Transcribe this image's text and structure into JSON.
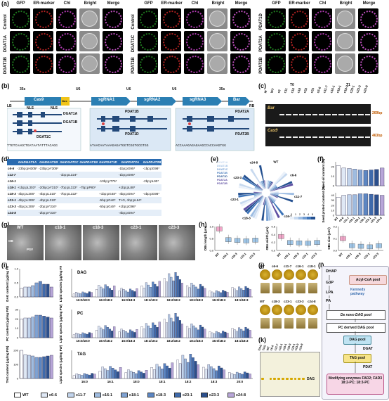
{
  "panel_letters": [
    "(a)",
    "(b)",
    "(c)",
    "(d)",
    "(e)",
    "(f)",
    "(g)",
    "(h)",
    "(i)",
    "(j)",
    "(k)",
    "(l)"
  ],
  "panel_a": {
    "channels": [
      "GFP",
      "ER-marker",
      "Chl",
      "Bright",
      "Merge"
    ],
    "group1_rows": [
      "Control",
      "DGAT1A",
      "DGAT1B"
    ],
    "group2_rows": [
      "Control",
      "DGAT1C",
      "PDAT1B"
    ],
    "group3_rows": [
      "PDAT1D",
      "PDAT2A",
      "PDAT2B"
    ]
  },
  "panel_b": {
    "top_labels": [
      "35s",
      "U6",
      "U6",
      "U6",
      "35s"
    ],
    "blocks": [
      "Cas9",
      "Nos",
      "sgRNA1",
      "sgRNA2",
      "sgRNA3",
      "Bar"
    ],
    "ends": [
      "LB",
      "RB"
    ],
    "nls": [
      "NLS",
      "NLS"
    ],
    "genes": [
      "DGAT1A",
      "DGAT1B",
      "DGAT1C",
      "PDAT1B",
      "PDAT1D",
      "PDAT2A",
      "PDAT2B"
    ],
    "sequences": [
      "TTGTCAAGCTGATAATATTTACAGG",
      "ATAACAATAAAGAGATGGTCGGTGCGTGG",
      "ACCAAAGAGAGAAGCCACCAAGTGG"
    ]
  },
  "panel_c": {
    "header_groups": [
      "T0",
      "T1"
    ],
    "lanes": [
      "M",
      "WT",
      "c6",
      "c11",
      "c16",
      "c18",
      "c23",
      "c24",
      "c6-6",
      "c11-7",
      "c16-1",
      "c18-1",
      "c18-3",
      "c23-1",
      "c23-3",
      "c24-8"
    ],
    "bands": [
      {
        "name": "Bar",
        "size": "269bp"
      },
      {
        "name": "Cas9",
        "size": "463bp"
      }
    ]
  },
  "panel_d": {
    "columns": [
      "",
      "GmDGAT1A",
      "GmDGAT1B",
      "GmDGAT1C",
      "GmPDAT1B",
      "GmPDAT1D",
      "GmPDAT2A",
      "GmPDAT2B"
    ],
    "rows": [
      [
        "c6-6",
        "-23bp;pH305*",
        "-23bp;pY309*",
        "",
        "",
        "",
        "-1bp;pG95*",
        "-1bp;pG98*"
      ],
      [
        "c11-7",
        "",
        "",
        "-1bp;pL324*",
        "",
        "",
        "-1bp;pG95*",
        ""
      ],
      [
        "c16-1",
        "",
        "",
        "",
        "",
        "-10bp;pT75*",
        "",
        "-2bp;pL90*"
      ],
      [
        "c18-1",
        "+1bp;pL303*",
        "-20bp;pY310*",
        "-7bp;pL322*",
        "-7bp;pP80*",
        "",
        "+1bp;pL88*",
        ""
      ],
      [
        "c18-3",
        "-4bp;pL306*",
        "-4bp;pL310*",
        "-7bp;pL322*",
        "",
        "+1bp;pG48*",
        "-4bp;pG94*",
        "-4bp;pG98*"
      ],
      [
        "c23-1",
        "-4bp;pL306*",
        "-4bp;pL310*",
        "",
        "",
        "-5bp;pG46*",
        "T>G,-1bp;pL64*",
        ""
      ],
      [
        "c23-3",
        "-4bp;pL306*",
        "-2bp;pY316*",
        "",
        "",
        "-5bp;pG48*",
        "+1bp;pG98*",
        ""
      ],
      [
        "c24-8",
        "",
        "-2bp;pY316*",
        "",
        "",
        "",
        "-4bp;pG94*",
        ""
      ]
    ]
  },
  "panel_e": {
    "genes": [
      "DGAT1A",
      "DGAT1B",
      "DGAT1C",
      "PDAT1B",
      "PDAT1D",
      "PDAT2A",
      "PDAT2B"
    ],
    "lines": [
      "WT",
      "c6-6",
      "c11-7",
      "c16-1",
      "c18-1",
      "c18-3",
      "c23-1",
      "c23-3",
      "c24-8"
    ],
    "scale": [
      0,
      1,
      2,
      3,
      4,
      5
    ]
  },
  "panel_f": {
    "chart_data": {
      "type": "bar",
      "categories": [
        "WT",
        "c6-6",
        "c11-7",
        "c16-1",
        "c18-1",
        "c18-3",
        "c23-1",
        "c23-3",
        "c24-8"
      ],
      "series": [
        {
          "name": "Seed oil content (%)",
          "values": [
            21,
            18.5,
            18,
            17.5,
            16.5,
            16,
            16.5,
            17,
            18.5
          ]
        },
        {
          "name": "Seed protein content (%)",
          "values": [
            36,
            40,
            41,
            41,
            43,
            43,
            42,
            41,
            40
          ]
        }
      ],
      "ylabels": [
        "Seed oil content (%)",
        "Seed protein content (%)"
      ],
      "ylim_oil": [
        0,
        25
      ],
      "ylim_protein": [
        0,
        45
      ],
      "oil_ticks": [
        "0",
        "10",
        "20"
      ],
      "protein_ticks": [
        "0",
        "10",
        "20",
        "30",
        "40"
      ]
    }
  },
  "panel_g": {
    "labels": [
      "WT",
      "c18-1",
      "c18-3",
      "c23-1",
      "c23-3"
    ],
    "annot": [
      "OB",
      "PSV"
    ]
  },
  "panel_h": {
    "chart_data": [
      {
        "type": "box",
        "ylabel": "OBs length (μm)",
        "categories": [
          "WT",
          "c18-1",
          "c18-3",
          "c23-1",
          "c23-3"
        ],
        "values": [
          0.9,
          0.45,
          0.42,
          0.4,
          0.43
        ],
        "ticks": [
          "0.0",
          "0.5",
          "1.0"
        ]
      },
      {
        "type": "box",
        "ylabel": "OBs width (μm)",
        "categories": [
          "WT",
          "c18-1",
          "c18-3",
          "c23-1",
          "c23-3"
        ],
        "values": [
          0.35,
          0.2,
          0.19,
          0.18,
          0.2
        ],
        "ticks": [
          "0.0",
          "0.2",
          "0.4",
          "0.6"
        ]
      },
      {
        "type": "box",
        "ylabel": "OBs size (μm²)",
        "categories": [
          "WT",
          "c18-1",
          "c18-3",
          "c23-1",
          "c23-3"
        ],
        "values": [
          0.1,
          0.04,
          0.035,
          0.03,
          0.04
        ],
        "ticks": [
          "0.0",
          "0.1",
          "0.2"
        ]
      }
    ]
  },
  "panel_i": {
    "legend": [
      "WT",
      "c6-6",
      "c11-7",
      "c16-1",
      "c18-1",
      "c18-3",
      "c23-1",
      "c23-3",
      "c24-8"
    ],
    "colors": [
      "#ffffff",
      "#dfe8f5",
      "#c2d4ec",
      "#9fbce0",
      "#7fa2d2",
      "#5c86c2",
      "#3f6aab",
      "#2b4f8c",
      "#b8a6d8"
    ],
    "chart_data": [
      {
        "type": "bar",
        "ylabel": "DAG content (μg/mg FW)",
        "values": [
          0.3,
          0.35,
          0.35,
          0.4,
          0.5,
          0.55,
          0.45,
          0.45,
          0.35
        ],
        "ticks": [
          "0.0",
          "0.5",
          "1.0"
        ]
      },
      {
        "type": "bar",
        "ylabel": "PC content (μg/mg FW)",
        "values": [
          20,
          21,
          21,
          22,
          24,
          24,
          23,
          22,
          21
        ],
        "ticks": [
          "0",
          "10",
          "20",
          "30"
        ]
      },
      {
        "type": "bar",
        "ylabel": "TAG content (μg/mg FW)",
        "values": [
          200,
          170,
          165,
          160,
          150,
          150,
          155,
          160,
          165
        ],
        "ticks": [
          "0",
          "100",
          "200"
        ]
      },
      {
        "type": "bar",
        "title": "DAG",
        "ylabel": "Lipid species (μg/mg FW)",
        "categories": [
          "16:0/18:0",
          "16:0/18:2",
          "16:0/18:3",
          "18:1/18:2",
          "18:2/18:2",
          "18:2/18:3",
          "16:0/18:3",
          "18:1/18:3"
        ]
      },
      {
        "type": "bar",
        "title": "PC",
        "ylabel": "Lipid species (μg/mg FW)",
        "categories": [
          "16:0/18:0",
          "16:0/18:2",
          "16:0/18:3",
          "18:1/18:2",
          "18:2/18:2",
          "18:2/18:3",
          "16:0/18:3",
          "18:1/18:3"
        ]
      },
      {
        "type": "bar",
        "title": "TAG",
        "ylabel": "Lipid species (μg/mg FW)",
        "categories": [
          "16:0",
          "16:1",
          "18:0",
          "18:1",
          "18:2",
          "18:3",
          "20:0"
        ]
      }
    ]
  },
  "panel_j": {
    "row1": [
      "WT",
      "c6-6",
      "c11-7",
      "c16-1",
      "c18-1"
    ],
    "row2": [
      "WT",
      "c18-3",
      "c23-1",
      "c23-3",
      "c24-8"
    ]
  },
  "panel_k": {
    "lanes": [
      "DAG",
      "TAG",
      "WT",
      "c6-6",
      "c11-7",
      "c16-1",
      "c18-1",
      "c18-3",
      "c23-1",
      "c23-3",
      "c24-8"
    ],
    "band": "DAG"
  },
  "panel_l": {
    "nodes": [
      "DHAP",
      "G3P",
      "LPA",
      "PA",
      "Acyl-CoA pool",
      "Kennedy pathway",
      "De novo DAG pool",
      "PC derived DAG pool",
      "DAG pool",
      "DGAT",
      "TAG pool",
      "PDAT",
      "Modifying enzymes FAD2; FAD3 18:2-PC; 18:3-PC"
    ]
  }
}
